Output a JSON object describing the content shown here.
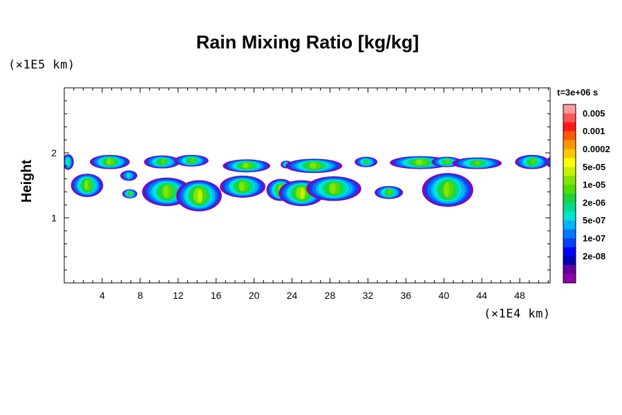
{
  "chart_data": {
    "type": "heatmap",
    "title": "Rain Mixing Ratio [kg/kg]",
    "ylabel": "Height",
    "y_unit_label": "(×1E5 km)",
    "x_unit_label": "(×1E4 km)",
    "time_label": "t=3e+06 s",
    "xlim": [
      0,
      51.2
    ],
    "ylim": [
      0,
      3
    ],
    "x_ticks": [
      4,
      8,
      12,
      16,
      20,
      24,
      28,
      32,
      36,
      40,
      44,
      48
    ],
    "y_ticks": [
      1,
      2
    ],
    "colorbar": {
      "labels": [
        "0.005",
        "0.001",
        "0.0002",
        "5e-05",
        "1e-05",
        "2e-06",
        "5e-07",
        "1e-07",
        "2e-08"
      ],
      "colors": [
        "#ff9d9d",
        "#ff5555",
        "#ff1a1a",
        "#ff5a00",
        "#ff9600",
        "#ffc800",
        "#ffff00",
        "#c8f000",
        "#82e600",
        "#50dc00",
        "#1ed23c",
        "#00dc8c",
        "#00e6d2",
        "#00b4ff",
        "#0078ff",
        "#0044ff",
        "#0000ff",
        "#0000b4",
        "#64009b",
        "#8c00aa"
      ]
    },
    "features": [
      {
        "x": 0.4,
        "y": 1.86,
        "rx": 0.6,
        "ry": 0.12,
        "peak": 0.78
      },
      {
        "x": 2.4,
        "y": 1.5,
        "rx": 1.7,
        "ry": 0.18,
        "peak": 0.3
      },
      {
        "x": 4.8,
        "y": 1.86,
        "rx": 2.1,
        "ry": 0.11,
        "peak": 0.3
      },
      {
        "x": 6.8,
        "y": 1.65,
        "rx": 0.9,
        "ry": 0.08,
        "peak": 0.95
      },
      {
        "x": 6.9,
        "y": 1.37,
        "rx": 0.8,
        "ry": 0.07,
        "peak": 0.5
      },
      {
        "x": 10.3,
        "y": 1.86,
        "rx": 1.9,
        "ry": 0.1,
        "peak": 0.55
      },
      {
        "x": 13.4,
        "y": 1.88,
        "rx": 1.8,
        "ry": 0.09,
        "peak": 0.5
      },
      {
        "x": 10.8,
        "y": 1.4,
        "rx": 2.6,
        "ry": 0.22,
        "peak": 0.25
      },
      {
        "x": 14.2,
        "y": 1.34,
        "rx": 2.4,
        "ry": 0.24,
        "peak": 0.2
      },
      {
        "x": 19.2,
        "y": 1.8,
        "rx": 2.5,
        "ry": 0.1,
        "peak": 0.3
      },
      {
        "x": 18.8,
        "y": 1.48,
        "rx": 2.4,
        "ry": 0.17,
        "peak": 0.3
      },
      {
        "x": 22.8,
        "y": 1.43,
        "rx": 1.5,
        "ry": 0.17,
        "peak": 0.4
      },
      {
        "x": 23.4,
        "y": 1.82,
        "rx": 0.6,
        "ry": 0.06,
        "peak": 0.75
      },
      {
        "x": 26.3,
        "y": 1.8,
        "rx": 3.0,
        "ry": 0.11,
        "peak": 0.3
      },
      {
        "x": 25.0,
        "y": 1.38,
        "rx": 2.4,
        "ry": 0.2,
        "peak": 0.2
      },
      {
        "x": 28.4,
        "y": 1.45,
        "rx": 2.9,
        "ry": 0.19,
        "peak": 0.3
      },
      {
        "x": 31.8,
        "y": 1.86,
        "rx": 1.2,
        "ry": 0.08,
        "peak": 0.65
      },
      {
        "x": 34.2,
        "y": 1.39,
        "rx": 1.5,
        "ry": 0.1,
        "peak": 0.55
      },
      {
        "x": 37.5,
        "y": 1.85,
        "rx": 3.2,
        "ry": 0.1,
        "peak": 0.35
      },
      {
        "x": 40.3,
        "y": 1.86,
        "rx": 1.6,
        "ry": 0.08,
        "peak": 0.45
      },
      {
        "x": 43.5,
        "y": 1.84,
        "rx": 2.6,
        "ry": 0.09,
        "peak": 0.55
      },
      {
        "x": 40.4,
        "y": 1.43,
        "rx": 2.7,
        "ry": 0.26,
        "peak": 0.35
      },
      {
        "x": 49.3,
        "y": 1.86,
        "rx": 1.8,
        "ry": 0.11,
        "peak": 0.45
      },
      {
        "x": 52.0,
        "y": 1.86,
        "rx": 1.2,
        "ry": 0.11,
        "peak": 0.7
      }
    ]
  }
}
